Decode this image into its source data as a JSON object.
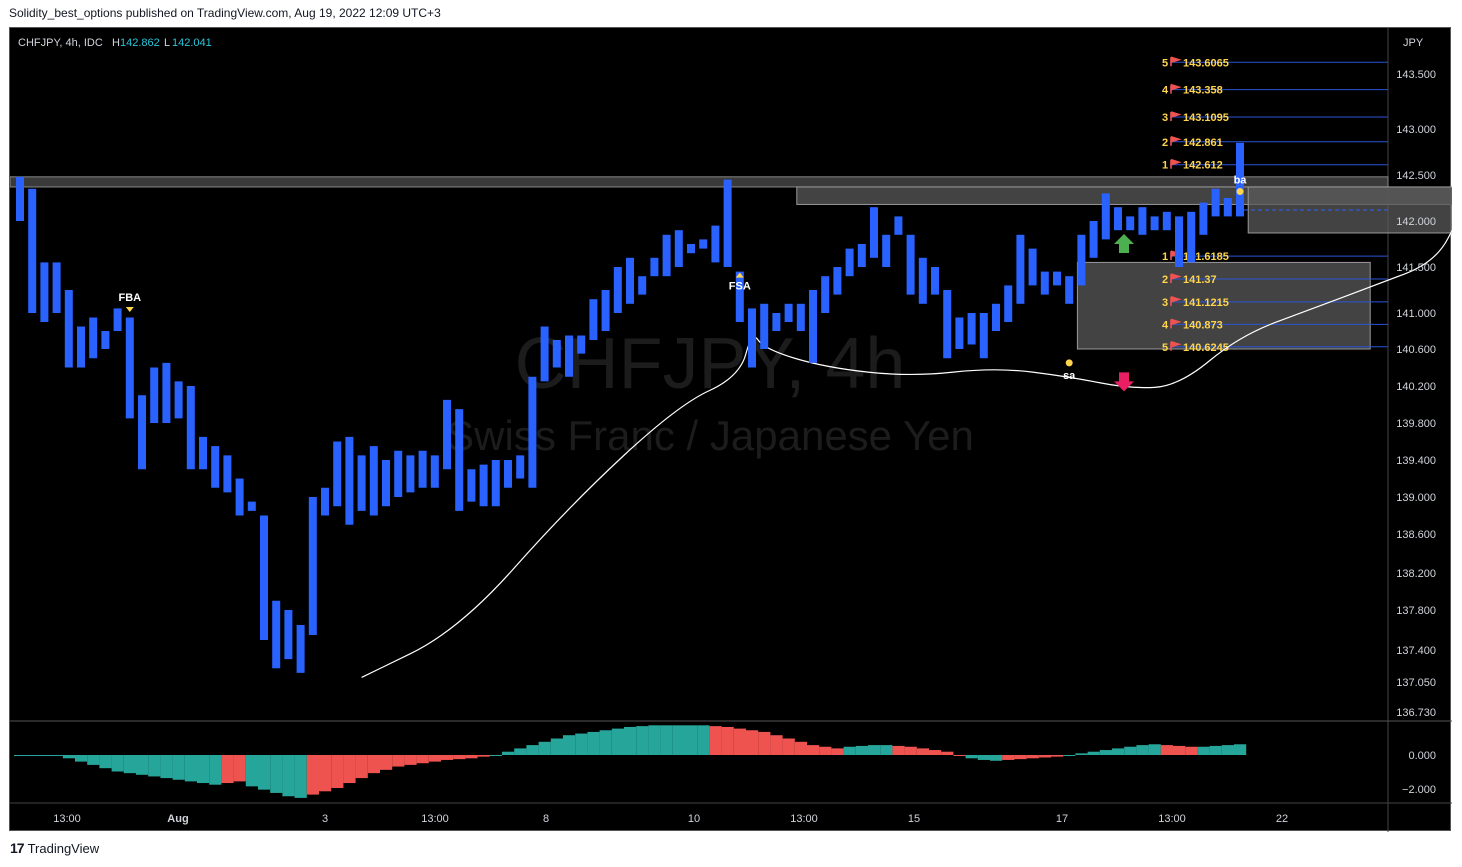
{
  "header": {
    "published": "Solidity_best_options published on TradingView.com, Aug 19, 2022 12:09 UTC+3"
  },
  "footer": {
    "brand": "TradingView"
  },
  "colors": {
    "background": "#000000",
    "bar": "#2962ff",
    "osc_pos": "#26a69a",
    "osc_neg": "#ef5350",
    "level_line": "#2b55d6",
    "level_text": "#ffd54f",
    "zone": "#5a5a5a",
    "arrow_up": "#4caf50",
    "arrow_down": "#e91e63"
  },
  "chart_data": [
    {
      "type": "bar",
      "symbol_label": "CHFJPY, 4h, IDC",
      "ohlc": {
        "h_label": "H",
        "h_value": "142.862",
        "l_label": "L",
        "l_value": "142.041"
      },
      "watermark_symbol": "CHFJPY, 4h",
      "watermark_name": "Swiss Franc / Japanese Yen",
      "currency": "JPY",
      "y_ticks": [
        "143.500",
        "143.000",
        "142.500",
        "142.000",
        "141.500",
        "141.000",
        "140.600",
        "140.200",
        "139.800",
        "139.400",
        "139.000",
        "138.600",
        "138.200",
        "137.800",
        "137.400",
        "137.050",
        "136.730"
      ],
      "y_range": [
        136.73,
        143.6
      ],
      "x_ticks": [
        "13:00",
        "Aug",
        "3",
        "13:00",
        "8",
        "10",
        "13:00",
        "15",
        "17",
        "13:00",
        "22"
      ],
      "bars": [
        [
          142.0,
          142.48
        ],
        [
          141.0,
          142.35
        ],
        [
          140.9,
          141.55
        ],
        [
          141.0,
          141.55
        ],
        [
          140.4,
          141.25
        ],
        [
          140.4,
          140.85
        ],
        [
          140.5,
          140.95
        ],
        [
          140.6,
          140.8
        ],
        [
          140.8,
          141.05
        ],
        [
          139.85,
          140.95
        ],
        [
          139.3,
          140.1
        ],
        [
          139.8,
          140.4
        ],
        [
          139.8,
          140.45
        ],
        [
          139.85,
          140.25
        ],
        [
          139.3,
          140.2
        ],
        [
          139.3,
          139.65
        ],
        [
          139.1,
          139.55
        ],
        [
          139.05,
          139.45
        ],
        [
          138.8,
          139.2
        ],
        [
          138.85,
          138.95
        ],
        [
          137.5,
          138.8
        ],
        [
          137.2,
          137.9
        ],
        [
          137.3,
          137.8
        ],
        [
          137.15,
          137.65
        ],
        [
          137.55,
          139.0
        ],
        [
          138.8,
          139.1
        ],
        [
          138.9,
          139.6
        ],
        [
          138.7,
          139.65
        ],
        [
          138.85,
          139.45
        ],
        [
          138.8,
          139.55
        ],
        [
          138.9,
          139.4
        ],
        [
          139.0,
          139.5
        ],
        [
          139.05,
          139.45
        ],
        [
          139.1,
          139.5
        ],
        [
          139.1,
          139.45
        ],
        [
          139.3,
          140.05
        ],
        [
          138.85,
          139.95
        ],
        [
          138.95,
          139.3
        ],
        [
          138.9,
          139.35
        ],
        [
          138.9,
          139.4
        ],
        [
          139.1,
          139.4
        ],
        [
          139.2,
          139.45
        ],
        [
          139.1,
          140.3
        ],
        [
          140.25,
          140.85
        ],
        [
          140.4,
          140.7
        ],
        [
          140.3,
          140.75
        ],
        [
          140.55,
          140.75
        ],
        [
          140.7,
          141.15
        ],
        [
          140.8,
          141.25
        ],
        [
          141.0,
          141.5
        ],
        [
          141.1,
          141.6
        ],
        [
          141.2,
          141.4
        ],
        [
          141.4,
          141.6
        ],
        [
          141.4,
          141.85
        ],
        [
          141.5,
          141.9
        ],
        [
          141.65,
          141.75
        ],
        [
          141.7,
          141.8
        ],
        [
          141.55,
          141.95
        ],
        [
          141.5,
          142.45
        ],
        [
          140.9,
          141.45
        ],
        [
          140.4,
          141.05
        ],
        [
          140.6,
          141.1
        ],
        [
          140.8,
          141.0
        ],
        [
          140.9,
          141.1
        ],
        [
          140.8,
          141.1
        ],
        [
          140.45,
          141.25
        ],
        [
          141.0,
          141.4
        ],
        [
          141.2,
          141.5
        ],
        [
          141.4,
          141.7
        ],
        [
          141.5,
          141.75
        ],
        [
          141.6,
          142.15
        ],
        [
          141.5,
          141.85
        ],
        [
          141.85,
          142.05
        ],
        [
          141.2,
          141.85
        ],
        [
          141.1,
          141.6
        ],
        [
          141.2,
          141.5
        ],
        [
          140.5,
          141.25
        ],
        [
          140.6,
          140.95
        ],
        [
          141.0,
          140.65
        ],
        [
          140.5,
          141.0
        ],
        [
          140.8,
          141.1
        ],
        [
          140.9,
          141.3
        ],
        [
          141.1,
          141.85
        ],
        [
          141.3,
          141.7
        ],
        [
          141.2,
          141.45
        ],
        [
          141.3,
          141.45
        ],
        [
          141.1,
          141.4
        ],
        [
          141.3,
          141.85
        ],
        [
          141.6,
          142.0
        ],
        [
          141.8,
          142.3
        ],
        [
          141.9,
          142.15
        ],
        [
          141.9,
          142.05
        ],
        [
          141.85,
          142.15
        ],
        [
          141.9,
          142.05
        ],
        [
          141.9,
          142.1
        ],
        [
          141.5,
          142.05
        ],
        [
          141.55,
          142.1
        ],
        [
          141.85,
          142.2
        ],
        [
          142.05,
          142.35
        ],
        [
          142.05,
          142.25
        ],
        [
          142.05,
          142.85
        ]
      ],
      "levels_above": [
        {
          "n": "5",
          "value": "143.6065",
          "y": 143.6065
        },
        {
          "n": "4",
          "value": "143.358",
          "y": 143.358
        },
        {
          "n": "3",
          "value": "143.1095",
          "y": 143.1095
        },
        {
          "n": "2",
          "value": "142.861",
          "y": 142.861
        },
        {
          "n": "1",
          "value": "142.612",
          "y": 142.612
        }
      ],
      "levels_below": [
        {
          "n": "1",
          "value": "141.6185",
          "y": 141.6185
        },
        {
          "n": "2",
          "value": "141.37",
          "y": 141.37
        },
        {
          "n": "3",
          "value": "141.1215",
          "y": 141.1215
        },
        {
          "n": "4",
          "value": "140.873",
          "y": 140.873
        },
        {
          "n": "5",
          "value": "140.6245",
          "y": 140.6245
        }
      ],
      "resistance_band": [
        142.37,
        142.48
      ],
      "zones": [
        {
          "from_bar": 64,
          "to_bar": 121,
          "low": 142.18,
          "high": 142.37
        },
        {
          "from_bar": 87,
          "to_bar": 111,
          "low": 140.6,
          "high": 141.55
        },
        {
          "from_bar": 101,
          "to_bar": 121,
          "low": 141.87,
          "high": 142.37
        }
      ],
      "annotations": [
        {
          "label": "FBA",
          "marker": "down",
          "bar": 9,
          "y": 141.0
        },
        {
          "label": "FSA",
          "marker": "up",
          "bar": 59,
          "y": 141.45
        },
        {
          "label": "sa",
          "marker": "dot",
          "bar": 86,
          "y": 140.45
        },
        {
          "label": "ba",
          "marker": "dot",
          "bar": 100,
          "y": 142.32
        }
      ],
      "signal_arrows": [
        {
          "dir": "up",
          "bar": 90,
          "y": 141.75
        },
        {
          "dir": "down",
          "bar": 90,
          "y": 140.25
        }
      ],
      "current_price": 142.12,
      "curve": [
        [
          28,
          137.1
        ],
        [
          36,
          137.6
        ],
        [
          45,
          138.9
        ],
        [
          54,
          140.0
        ],
        [
          59,
          140.3
        ],
        [
          60,
          140.8
        ],
        [
          61,
          140.6
        ],
        [
          66,
          140.4
        ],
        [
          73,
          140.3
        ],
        [
          80,
          140.4
        ],
        [
          86,
          140.3
        ],
        [
          91,
          140.17
        ],
        [
          95,
          140.2
        ],
        [
          100,
          140.75
        ],
        [
          106,
          141.05
        ],
        [
          111,
          141.3
        ],
        [
          116,
          141.55
        ],
        [
          118,
          142.05
        ]
      ],
      "oscillator": {
        "y_ticks": [
          "0.000",
          "−2.000"
        ],
        "y_range": [
          -2.5,
          1.8
        ],
        "values": [
          0,
          0,
          0,
          0,
          -0.2,
          -0.4,
          -0.6,
          -0.8,
          -1.0,
          -1.1,
          -1.2,
          -1.3,
          -1.4,
          -1.5,
          -1.6,
          -1.7,
          -1.8,
          -1.7,
          -1.6,
          -1.9,
          -2.1,
          -2.3,
          -2.5,
          -2.6,
          -2.4,
          -2.2,
          -2.0,
          -1.7,
          -1.4,
          -1.1,
          -0.9,
          -0.7,
          -0.6,
          -0.5,
          -0.4,
          -0.3,
          -0.25,
          -0.2,
          -0.1,
          0.0,
          0.2,
          0.4,
          0.6,
          0.8,
          1.0,
          1.2,
          1.3,
          1.4,
          1.5,
          1.6,
          1.7,
          1.75,
          1.8,
          1.8,
          1.8,
          1.8,
          1.8,
          1.75,
          1.7,
          1.6,
          1.5,
          1.4,
          1.2,
          1.0,
          0.8,
          0.6,
          0.5,
          0.4,
          0.5,
          0.55,
          0.6,
          0.6,
          0.55,
          0.5,
          0.4,
          0.3,
          0.2,
          0.0,
          -0.2,
          -0.3,
          -0.35,
          -0.3,
          -0.25,
          -0.2,
          -0.15,
          -0.1,
          0.0,
          0.1,
          0.2,
          0.3,
          0.4,
          0.5,
          0.6,
          0.65,
          0.6,
          0.55,
          0.5,
          0.5,
          0.55,
          0.6,
          0.65
        ]
      }
    }
  ]
}
